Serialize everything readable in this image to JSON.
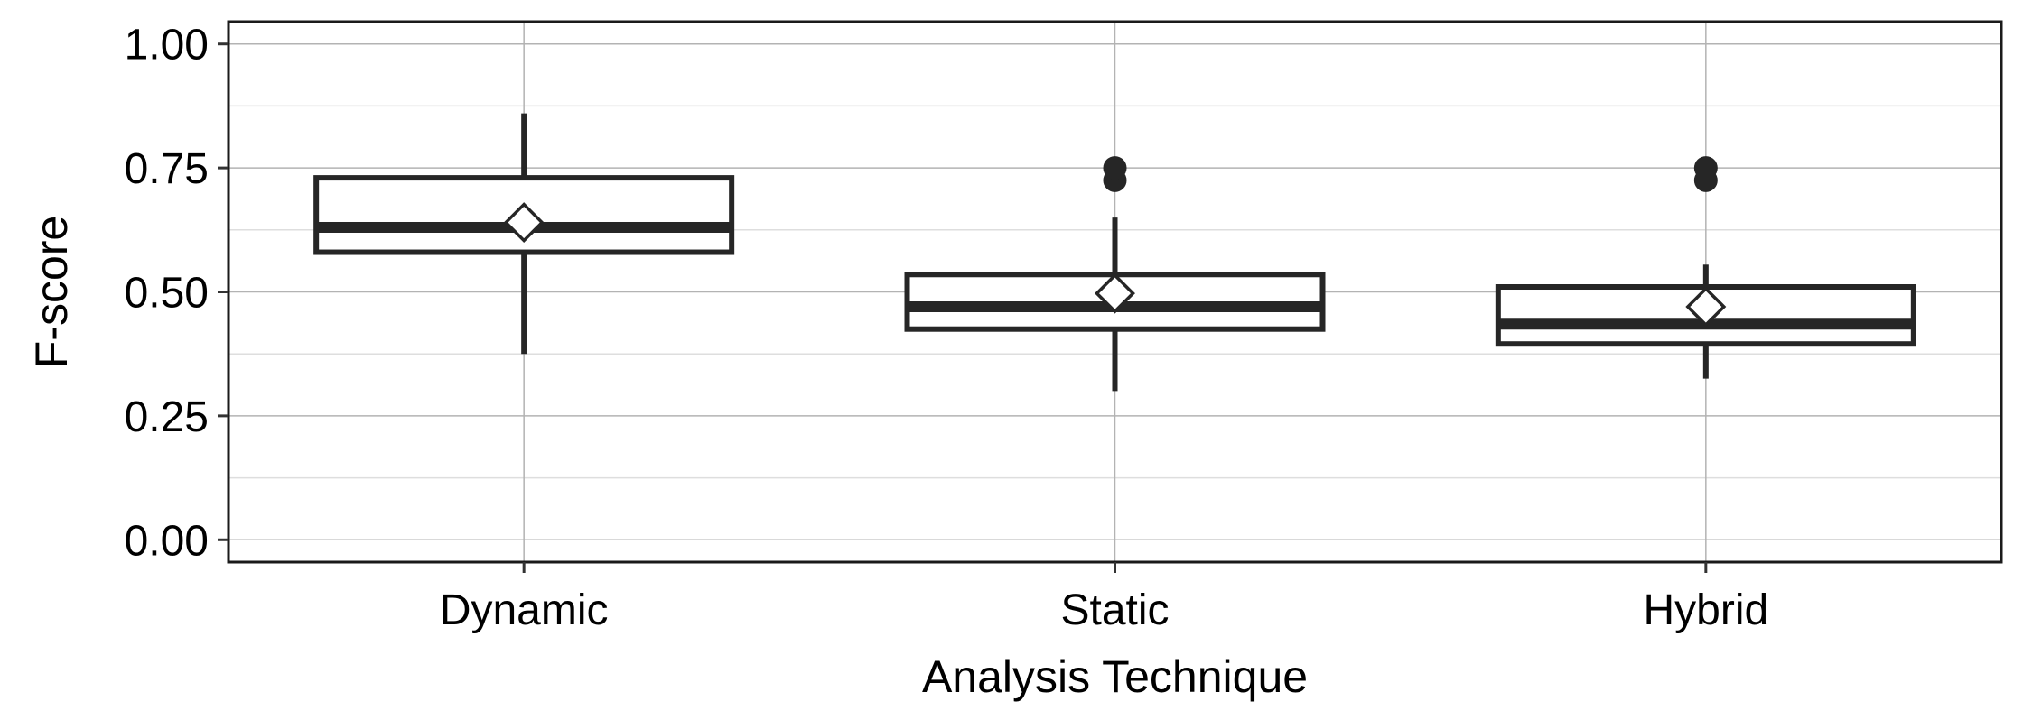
{
  "chart_data": {
    "type": "box",
    "xlabel": "Analysis Technique",
    "ylabel": "F-score",
    "ylim": [
      -0.045,
      1.045
    ],
    "yticks": [
      "0.00",
      "0.25",
      "0.50",
      "0.75",
      "1.00"
    ],
    "ytick_values": [
      0,
      0.25,
      0.5,
      0.75,
      1.0
    ],
    "y_minor_gridlines": [
      0.125,
      0.375,
      0.625,
      0.875
    ],
    "grid": true,
    "categories": [
      "Dynamic",
      "Static",
      "Hybrid"
    ],
    "boxes": [
      {
        "category": "Dynamic",
        "whisker_low": 0.375,
        "q1": 0.58,
        "median": 0.63,
        "q3": 0.73,
        "whisker_high": 0.86,
        "mean": 0.64,
        "outliers": []
      },
      {
        "category": "Static",
        "whisker_low": 0.3,
        "q1": 0.425,
        "median": 0.47,
        "q3": 0.535,
        "whisker_high": 0.65,
        "mean": 0.497,
        "outliers": [
          0.725,
          0.75
        ]
      },
      {
        "category": "Hybrid",
        "whisker_low": 0.325,
        "q1": 0.395,
        "median": 0.435,
        "q3": 0.51,
        "whisker_high": 0.555,
        "mean": 0.47,
        "outliers": [
          0.725,
          0.75
        ]
      }
    ],
    "colors": {
      "box_stroke": "#262626",
      "grid_major": "#b3b3b3",
      "grid_minor": "#dedede",
      "panel_border": "#1a1a1a",
      "mean_fill": "#ffffff"
    }
  }
}
